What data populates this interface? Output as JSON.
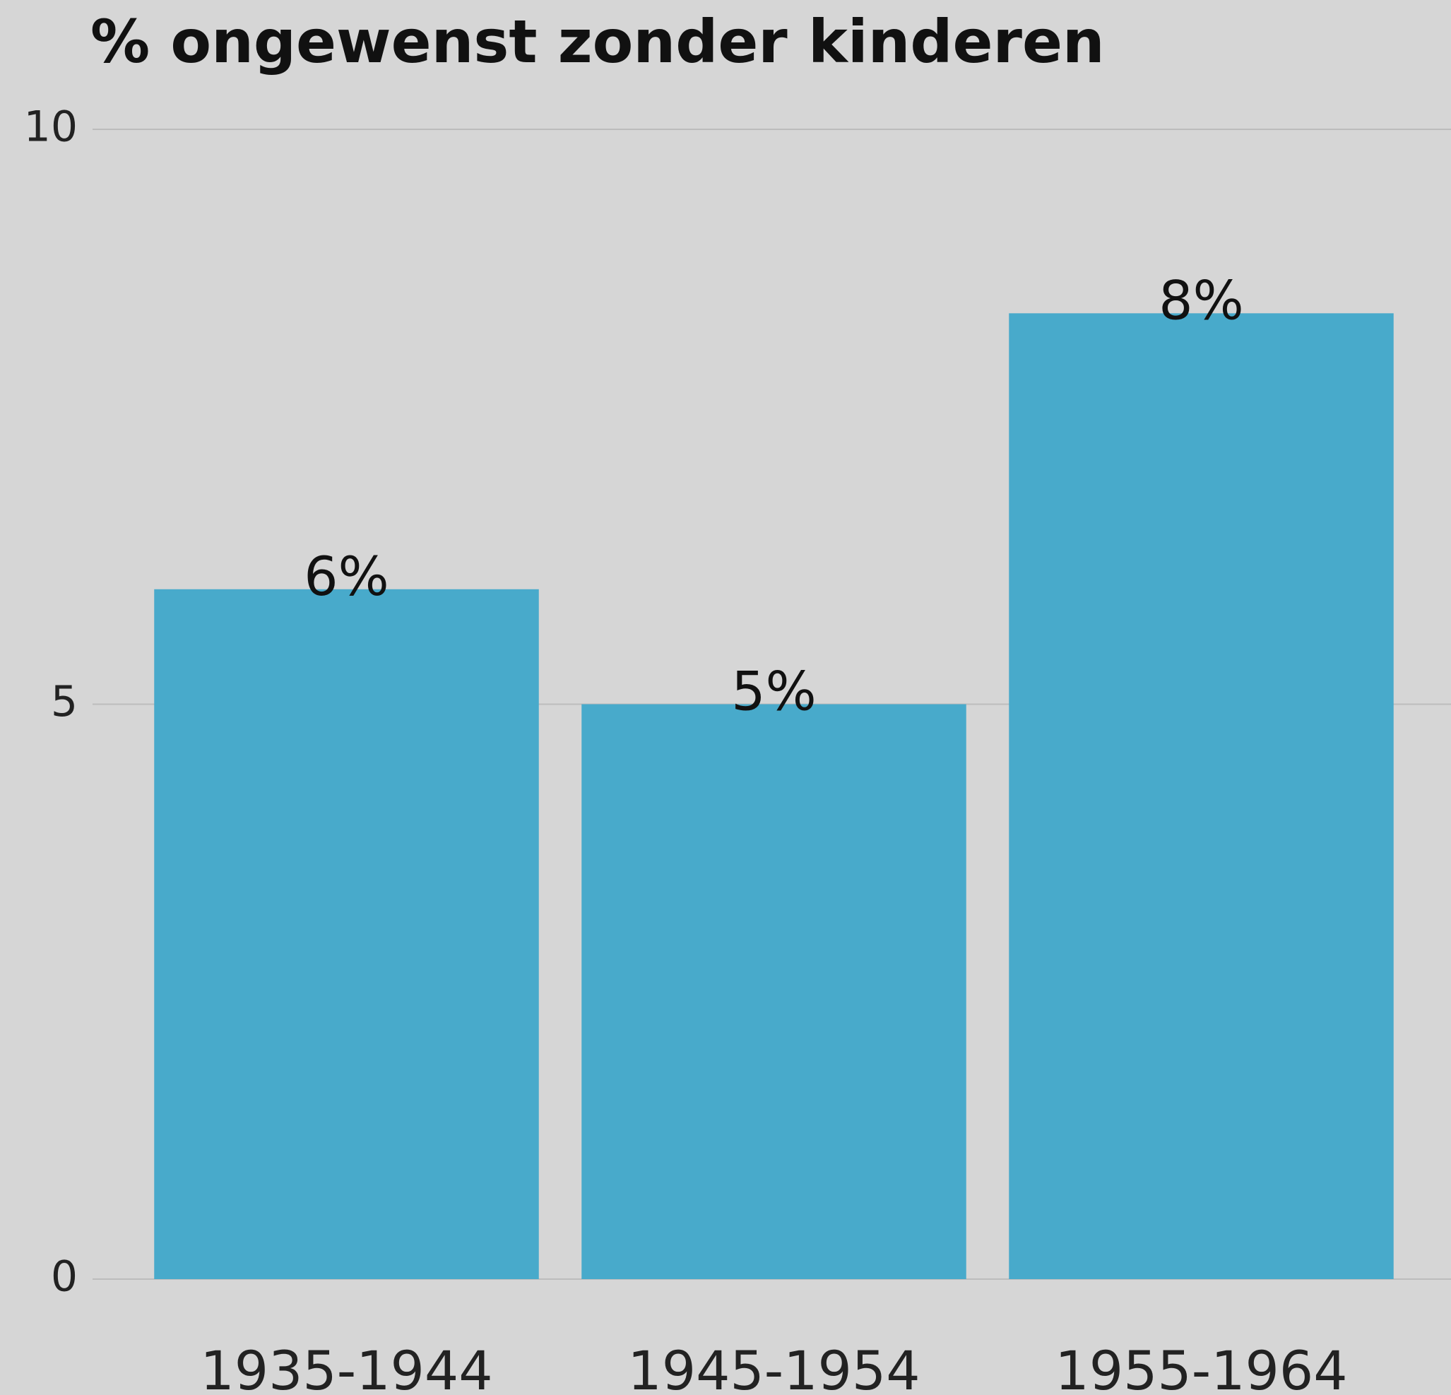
{
  "chart_data": {
    "type": "bar",
    "title": "% ongewenst zonder kinderen",
    "categories": [
      "1935-1944",
      "1945-1954",
      "1955-1964"
    ],
    "values": [
      6,
      5,
      8.4
    ],
    "value_labels": [
      "6%",
      "5%",
      "8%"
    ],
    "color": "#48aacb",
    "ylim": [
      0,
      10
    ],
    "yticks": [
      0,
      5,
      10
    ],
    "grid": true
  }
}
